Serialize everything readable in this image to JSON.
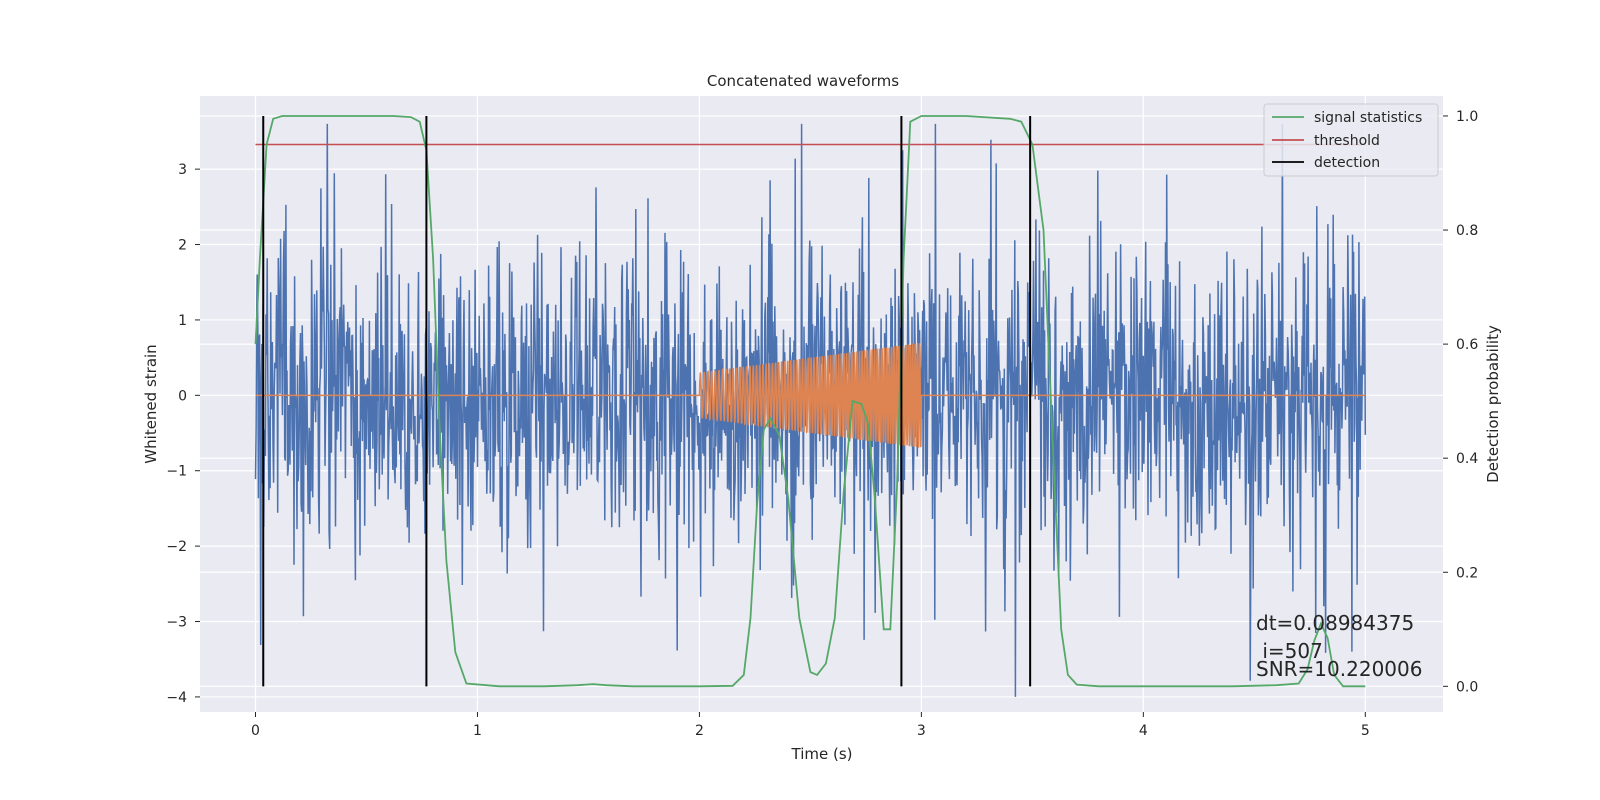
{
  "chart_data": {
    "type": "line",
    "title": "Concatenated waveforms",
    "xlabel": "Time (s)",
    "ylabel": "Whitened strain",
    "ylabel_right": "Detection probability",
    "xlim": [
      -0.25,
      5.35
    ],
    "ylim": [
      -4.2,
      3.97
    ],
    "ylim_right": [
      -0.045,
      1.035
    ],
    "xticks": [
      0,
      1,
      2,
      3,
      4,
      5
    ],
    "yticks": [
      -4,
      -3,
      -2,
      -1,
      0,
      1,
      2,
      3
    ],
    "yticks_right": [
      0.0,
      0.2,
      0.4,
      0.6,
      0.8,
      1.0
    ],
    "grid": true,
    "legend_position": "top-right",
    "colors": {
      "strain": "#4c72b0",
      "template": "#dd8452",
      "signal_statistics": "#55a868",
      "threshold": "#c44e52",
      "detection": "#000000",
      "background": "#eaeaf2",
      "grid": "#ffffff"
    },
    "series": [
      {
        "name": "signal statistics",
        "axis": "right",
        "color": "#55a868",
        "x": [
          0.0,
          0.02,
          0.05,
          0.08,
          0.12,
          0.2,
          0.3,
          0.5,
          0.62,
          0.7,
          0.74,
          0.77,
          0.8,
          0.83,
          0.86,
          0.9,
          0.95,
          1.1,
          1.3,
          1.45,
          1.52,
          1.58,
          1.7,
          2.0,
          2.15,
          2.2,
          2.23,
          2.26,
          2.29,
          2.32,
          2.36,
          2.4,
          2.45,
          2.5,
          2.53,
          2.57,
          2.61,
          2.65,
          2.69,
          2.73,
          2.76,
          2.79,
          2.83,
          2.86,
          2.89,
          2.92,
          2.95,
          3.0,
          3.2,
          3.4,
          3.45,
          3.5,
          3.55,
          3.6,
          3.63,
          3.66,
          3.7,
          3.8,
          4.0,
          4.2,
          4.4,
          4.6,
          4.7,
          4.74,
          4.77,
          4.8,
          4.83,
          4.86,
          4.9,
          5.0
        ],
        "values": [
          0.6,
          0.75,
          0.95,
          0.995,
          1.0,
          1.0,
          1.0,
          1.0,
          1.0,
          0.998,
          0.99,
          0.94,
          0.75,
          0.45,
          0.22,
          0.06,
          0.005,
          0.0,
          0.0,
          0.002,
          0.004,
          0.002,
          0.0,
          0.0,
          0.001,
          0.02,
          0.12,
          0.32,
          0.45,
          0.47,
          0.44,
          0.33,
          0.12,
          0.025,
          0.02,
          0.04,
          0.12,
          0.34,
          0.5,
          0.495,
          0.46,
          0.33,
          0.1,
          0.1,
          0.35,
          0.75,
          0.99,
          1.0,
          1.0,
          0.995,
          0.99,
          0.95,
          0.8,
          0.35,
          0.1,
          0.02,
          0.003,
          0.0,
          0.0,
          0.0,
          0.0,
          0.002,
          0.005,
          0.03,
          0.08,
          0.11,
          0.085,
          0.02,
          0.0,
          0.0
        ]
      },
      {
        "name": "threshold",
        "axis": "right",
        "color": "#c44e52",
        "x": [
          0.0,
          5.0
        ],
        "values": [
          0.95,
          0.95
        ]
      },
      {
        "name": "detection",
        "axis": "right",
        "color": "#000000",
        "x": [
          0.035,
          0.77,
          2.91,
          3.49
        ],
        "from": 0.0,
        "to": 1.0
      }
    ],
    "strain": {
      "axis": "left",
      "color": "#4c72b0",
      "x_range": [
        0.0,
        5.0
      ],
      "envelope": [
        -4.0,
        3.6
      ],
      "dense_band": [
        -1.0,
        1.0
      ]
    },
    "template": {
      "axis": "left",
      "color": "#dd8452",
      "x_range": [
        2.0,
        3.0
      ],
      "amplitude_start": 0.3,
      "amplitude_end": 0.7,
      "baseline": 0.0
    },
    "annotations": [
      "dt=0.08984375",
      " i=507",
      "SNR=10.220006"
    ]
  }
}
